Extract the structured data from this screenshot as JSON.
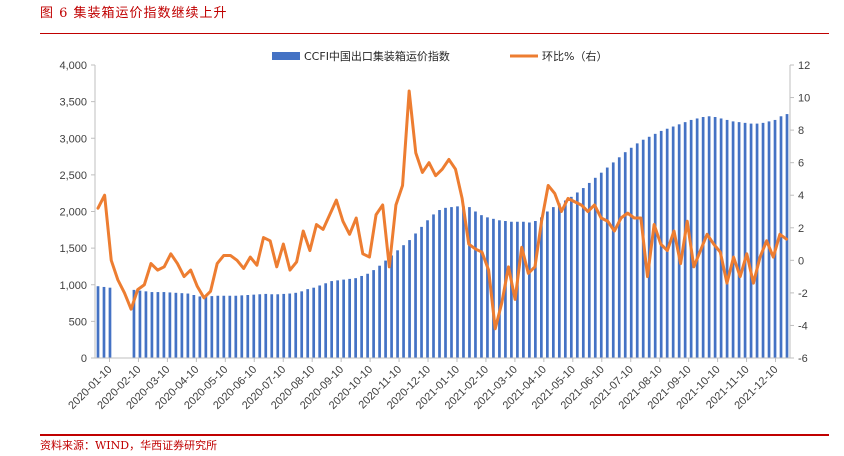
{
  "figure": {
    "title": "图 6   集装箱运价指数继续上升",
    "source": "资料来源：WIND，华西证券研究所"
  },
  "colors": {
    "bar": "#4472c4",
    "line": "#ed7d31",
    "accent": "#c00000"
  },
  "chart_data": {
    "type": "bar",
    "legend_position": "top",
    "grid": false,
    "left_axis": {
      "min": 0,
      "max": 4000,
      "ticks": [
        0,
        500,
        1000,
        1500,
        2000,
        2500,
        3000,
        3500,
        4000
      ],
      "tick_labels": [
        "0",
        "500",
        "1,000",
        "1,500",
        "2,000",
        "2,500",
        "3,000",
        "3,500",
        "4,000"
      ]
    },
    "right_axis": {
      "min": -6,
      "max": 12,
      "ticks": [
        -6,
        -4,
        -2,
        0,
        2,
        4,
        6,
        8,
        10,
        12
      ],
      "tick_labels": [
        "-6",
        "-4",
        "-2",
        "0",
        "2",
        "4",
        "6",
        "8",
        "10",
        "12"
      ]
    },
    "x_tick_labels": [
      "2020-01-10",
      "2020-02-10",
      "2020-03-10",
      "2020-04-10",
      "2020-05-10",
      "2020-06-10",
      "2020-07-10",
      "2020-08-10",
      "2020-09-10",
      "2020-10-10",
      "2020-11-10",
      "2020-12-10",
      "2021-01-10",
      "2021-02-10",
      "2021-03-10",
      "2021-04-10",
      "2021-05-10",
      "2021-06-10",
      "2021-07-10",
      "2021-08-10",
      "2021-09-10",
      "2021-10-10",
      "2021-11-10",
      "2021-12-10"
    ],
    "series": [
      {
        "name": "CCFI中国出口集装箱运价指数",
        "type": "bar",
        "axis": "left",
        "values": [
          980,
          970,
          960,
          null,
          null,
          null,
          930,
          920,
          910,
          900,
          900,
          900,
          895,
          890,
          885,
          880,
          860,
          840,
          840,
          845,
          850,
          850,
          850,
          850,
          855,
          860,
          865,
          870,
          875,
          870,
          870,
          875,
          880,
          890,
          910,
          940,
          960,
          990,
          1020,
          1050,
          1060,
          1070,
          1080,
          1090,
          1120,
          1150,
          1200,
          1260,
          1330,
          1400,
          1470,
          1540,
          1610,
          1700,
          1790,
          1880,
          1960,
          2020,
          2050,
          2060,
          2070,
          2070,
          2060,
          2000,
          1950,
          1920,
          1900,
          1880,
          1870,
          1860,
          1860,
          1860,
          1850,
          1870,
          1920,
          2000,
          2060,
          2110,
          2150,
          2200,
          2260,
          2320,
          2390,
          2460,
          2530,
          2600,
          2670,
          2740,
          2810,
          2870,
          2930,
          2980,
          3020,
          3060,
          3100,
          3130,
          3160,
          3190,
          3220,
          3250,
          3270,
          3290,
          3300,
          3290,
          3270,
          3250,
          3230,
          3220,
          3210,
          3200,
          3200,
          3210,
          3230,
          3250,
          3300,
          3330
        ]
      },
      {
        "name": "环比%（右）",
        "type": "line",
        "axis": "right",
        "points": [
          [
            0,
            3.2
          ],
          [
            1,
            4.0
          ],
          [
            2,
            0.0
          ],
          [
            3,
            -1.2
          ],
          [
            4,
            -2.0
          ],
          [
            5,
            -3.0
          ],
          [
            6,
            -1.8
          ],
          [
            7,
            -1.5
          ],
          [
            8,
            -0.2
          ],
          [
            9,
            -0.6
          ],
          [
            10,
            -0.4
          ],
          [
            11,
            0.4
          ],
          [
            12,
            -0.2
          ],
          [
            13,
            -1.0
          ],
          [
            14,
            -0.6
          ],
          [
            15,
            -1.6
          ],
          [
            16,
            -2.3
          ],
          [
            17,
            -1.9
          ],
          [
            18,
            -0.2
          ],
          [
            19,
            0.3
          ],
          [
            20,
            0.3
          ],
          [
            21,
            0.0
          ],
          [
            22,
            -0.5
          ],
          [
            23,
            0.2
          ],
          [
            24,
            -0.3
          ],
          [
            25,
            1.4
          ],
          [
            26,
            1.2
          ],
          [
            27,
            -0.4
          ],
          [
            28,
            1.0
          ],
          [
            29,
            -0.6
          ],
          [
            30,
            -0.1
          ],
          [
            31,
            1.8
          ],
          [
            32,
            0.6
          ],
          [
            33,
            2.2
          ],
          [
            34,
            1.9
          ],
          [
            35,
            2.8
          ],
          [
            36,
            3.7
          ],
          [
            37,
            2.4
          ],
          [
            38,
            1.6
          ],
          [
            39,
            2.6
          ],
          [
            40,
            0.4
          ],
          [
            41,
            0.2
          ],
          [
            42,
            2.8
          ],
          [
            43,
            3.4
          ],
          [
            44,
            -0.4
          ],
          [
            45,
            3.4
          ],
          [
            46,
            4.6
          ],
          [
            47,
            10.4
          ],
          [
            48,
            6.6
          ],
          [
            49,
            5.4
          ],
          [
            50,
            6.0
          ],
          [
            51,
            5.2
          ],
          [
            52,
            5.6
          ],
          [
            53,
            6.2
          ],
          [
            54,
            5.6
          ],
          [
            55,
            3.8
          ],
          [
            56,
            1.0
          ],
          [
            57,
            0.7
          ],
          [
            58,
            0.5
          ],
          [
            59,
            -0.6
          ],
          [
            60,
            -4.2
          ],
          [
            61,
            -2.6
          ],
          [
            62,
            -0.4
          ],
          [
            63,
            -2.4
          ],
          [
            64,
            0.8
          ],
          [
            65,
            -0.8
          ],
          [
            66,
            -0.4
          ],
          [
            67,
            2.4
          ],
          [
            68,
            4.6
          ],
          [
            69,
            4.1
          ],
          [
            70,
            3.0
          ],
          [
            71,
            3.8
          ],
          [
            72,
            3.6
          ],
          [
            73,
            3.4
          ],
          [
            74,
            3.0
          ],
          [
            75,
            3.4
          ],
          [
            76,
            2.6
          ],
          [
            77,
            2.4
          ],
          [
            78,
            1.8
          ],
          [
            79,
            2.6
          ],
          [
            80,
            2.9
          ],
          [
            81,
            2.6
          ],
          [
            82,
            2.6
          ],
          [
            83,
            -1.0
          ],
          [
            84,
            2.2
          ],
          [
            85,
            1.0
          ],
          [
            86,
            0.6
          ],
          [
            87,
            1.8
          ],
          [
            88,
            -0.2
          ],
          [
            89,
            2.4
          ],
          [
            90,
            -0.4
          ],
          [
            91,
            0.6
          ],
          [
            92,
            1.6
          ],
          [
            93,
            1.0
          ],
          [
            94,
            0.5
          ],
          [
            95,
            -1.4
          ],
          [
            96,
            0.2
          ],
          [
            97,
            -1.0
          ],
          [
            98,
            0.4
          ],
          [
            99,
            -1.4
          ],
          [
            100,
            0.2
          ],
          [
            101,
            1.2
          ],
          [
            102,
            0.2
          ],
          [
            103,
            1.6
          ],
          [
            104,
            1.3
          ]
        ]
      }
    ]
  }
}
